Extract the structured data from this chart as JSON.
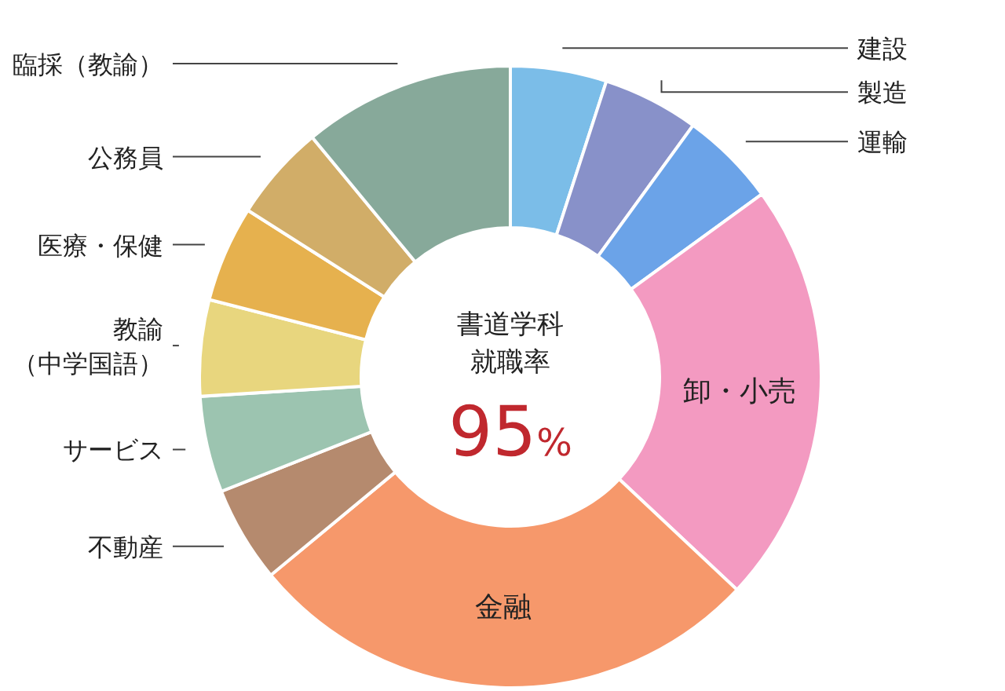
{
  "chart_data": {
    "type": "donut",
    "categories": [
      "建設",
      "製造",
      "運輸",
      "卸・小売",
      "金融",
      "不動産",
      "サービス",
      "教諭（中学国語）",
      "医療・保健",
      "公務員",
      "臨採（教諭）"
    ],
    "values": [
      5,
      5,
      5,
      22,
      27,
      5,
      5,
      5,
      5,
      5,
      11
    ],
    "colors": [
      "#7bbde8",
      "#8891c9",
      "#6ba3e8",
      "#f39ac1",
      "#f6986b",
      "#b58a6e",
      "#9cc4b0",
      "#e8d67e",
      "#e6b14e",
      "#d1ad68",
      "#87a99a"
    ],
    "annotations": [
      "書道学科",
      "就職率",
      "95%"
    ]
  }
}
